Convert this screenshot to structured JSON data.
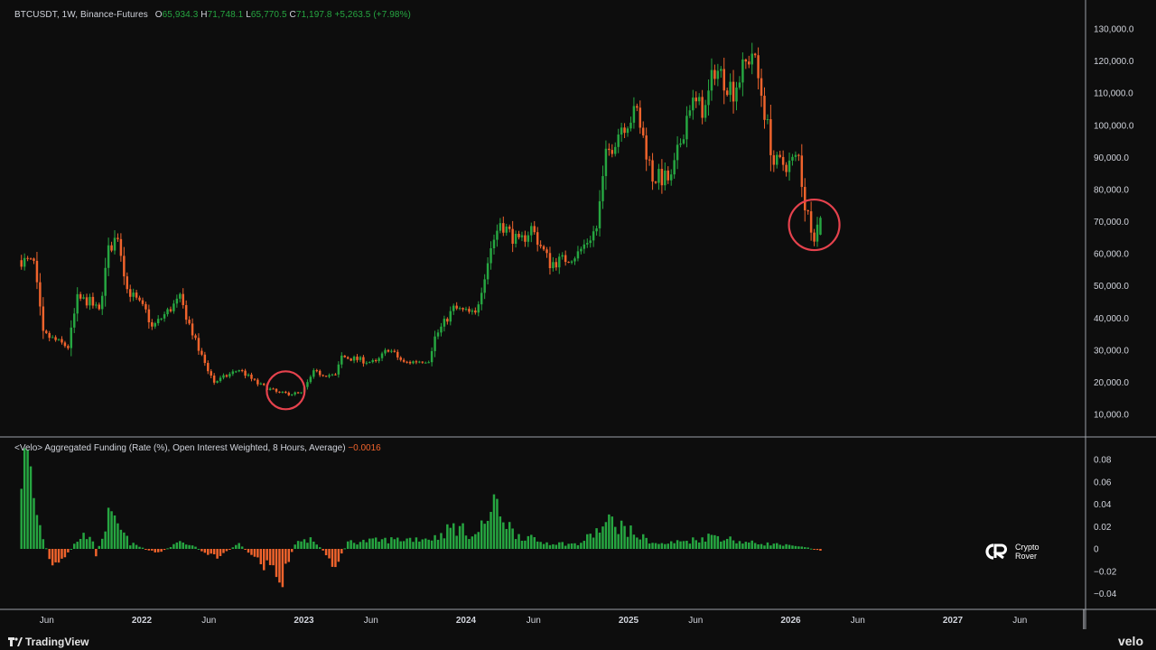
{
  "header": {
    "symbol": "BTCUSDT, 1W, Binance-Futures",
    "o_label": "O",
    "o_value": "65,934.3",
    "h_label": "H",
    "h_value": "71,748.1",
    "l_label": "L",
    "l_value": "65,770.5",
    "c_label": "C",
    "c_value": "71,197.8",
    "change": "+5,263.5 (+7.98%)"
  },
  "indicator": {
    "title": "<Velo> Aggregated Funding (Rate (%), Open Interest Weighted, 8 Hours, Average)",
    "value": "−0.0016"
  },
  "brand": {
    "left": "TradingView",
    "right": "velo",
    "watermark_line1": "Crypto",
    "watermark_line2": "Rover"
  },
  "colors": {
    "up": "#26a641",
    "down": "#f0632c",
    "circle": "#e5424d",
    "background": "#0d0d0d"
  },
  "chart_data": [
    {
      "type": "candlestick",
      "title": "BTCUSDT, 1W, Binance-Futures",
      "ylim": [
        0,
        135000
      ],
      "y_ticks": [
        "130,000.0",
        "120,000.0",
        "110,000.0",
        "100,000.0",
        "90,000.0",
        "80,000.0",
        "70,000.0",
        "60,000.0",
        "50,000.0",
        "40,000.0",
        "30,000.0",
        "20,000.0",
        "10,000.0"
      ],
      "x_ticks": [
        "Jun",
        "2022",
        "Jun",
        "2023",
        "Jun",
        "2024",
        "Jun",
        "2025",
        "Jun",
        "2026",
        "Jun",
        "2027",
        "Jun"
      ],
      "x_tick_dates": [
        "2021-06-01",
        "2022-01-01",
        "2022-06-01",
        "2023-01-01",
        "2023-06-01",
        "2024-01-01",
        "2024-06-01",
        "2025-01-01",
        "2025-06-01",
        "2026-01-01",
        "2026-06-01",
        "2027-01-01",
        "2027-06-01"
      ],
      "x_range": [
        "2021-04-05",
        "2027-10-01"
      ],
      "anchors": [
        {
          "date": "2021-04-05",
          "close": 58000
        },
        {
          "date": "2021-05-03",
          "close": 57000
        },
        {
          "date": "2021-05-24",
          "close": 35000
        },
        {
          "date": "2021-06-21",
          "close": 33000
        },
        {
          "date": "2021-07-19",
          "close": 31000
        },
        {
          "date": "2021-08-09",
          "close": 46000
        },
        {
          "date": "2021-09-06",
          "close": 45000
        },
        {
          "date": "2021-09-27",
          "close": 42000
        },
        {
          "date": "2021-10-18",
          "close": 61000
        },
        {
          "date": "2021-11-08",
          "close": 66000
        },
        {
          "date": "2021-11-29",
          "close": 49000
        },
        {
          "date": "2022-01-10",
          "close": 42000
        },
        {
          "date": "2022-01-24",
          "close": 37000
        },
        {
          "date": "2022-03-28",
          "close": 46000
        },
        {
          "date": "2022-05-09",
          "close": 30000
        },
        {
          "date": "2022-06-13",
          "close": 20000
        },
        {
          "date": "2022-08-08",
          "close": 24000
        },
        {
          "date": "2022-09-19",
          "close": 19500
        },
        {
          "date": "2022-11-07",
          "close": 16500
        },
        {
          "date": "2022-12-26",
          "close": 16500
        },
        {
          "date": "2023-01-23",
          "close": 23000
        },
        {
          "date": "2023-03-13",
          "close": 22000
        },
        {
          "date": "2023-03-27",
          "close": 28000
        },
        {
          "date": "2023-06-12",
          "close": 26000
        },
        {
          "date": "2023-07-10",
          "close": 30500
        },
        {
          "date": "2023-08-14",
          "close": 26000
        },
        {
          "date": "2023-10-09",
          "close": 27000
        },
        {
          "date": "2023-10-23",
          "close": 34000
        },
        {
          "date": "2023-12-04",
          "close": 43000
        },
        {
          "date": "2024-01-22",
          "close": 41000
        },
        {
          "date": "2024-02-26",
          "close": 62000
        },
        {
          "date": "2024-03-18",
          "close": 70000
        },
        {
          "date": "2024-04-29",
          "close": 63000
        },
        {
          "date": "2024-05-27",
          "close": 68000
        },
        {
          "date": "2024-07-08",
          "close": 57000
        },
        {
          "date": "2024-08-05",
          "close": 58000
        },
        {
          "date": "2024-09-09",
          "close": 60000
        },
        {
          "date": "2024-10-21",
          "close": 68000
        },
        {
          "date": "2024-11-11",
          "close": 90000
        },
        {
          "date": "2024-12-16",
          "close": 100000
        },
        {
          "date": "2025-01-20",
          "close": 104000
        },
        {
          "date": "2025-02-24",
          "close": 84000
        },
        {
          "date": "2025-04-07",
          "close": 83000
        },
        {
          "date": "2025-05-19",
          "close": 107000
        },
        {
          "date": "2025-06-23",
          "close": 105000
        },
        {
          "date": "2025-07-14",
          "close": 118000
        },
        {
          "date": "2025-08-25",
          "close": 111000
        },
        {
          "date": "2025-10-06",
          "close": 123000
        },
        {
          "date": "2025-10-27",
          "close": 110000
        },
        {
          "date": "2025-11-24",
          "close": 88000
        },
        {
          "date": "2025-12-29",
          "close": 88000
        },
        {
          "date": "2026-01-19",
          "close": 90000
        },
        {
          "date": "2026-02-02",
          "close": 75000
        },
        {
          "date": "2026-02-23",
          "close": 66000
        },
        {
          "date": "2026-03-09",
          "close": 71197.8
        }
      ],
      "last_candle": {
        "open": 65934.3,
        "high": 71748.1,
        "low": 65770.5,
        "close": 71197.8
      },
      "highlights": [
        {
          "date": "2022-11-21",
          "price": 17500
        },
        {
          "date": "2026-02-23",
          "price": 69000
        }
      ]
    },
    {
      "type": "bar",
      "title": "<Velo> Aggregated Funding (Rate (%), Open Interest Weighted, 8 Hours, Average)",
      "ylim": [
        -0.05,
        0.1
      ],
      "y_ticks": [
        "0.08",
        "0.06",
        "0.04",
        "0.02",
        "0",
        "−0.02",
        "−0.04"
      ],
      "anchors": [
        {
          "date": "2021-04-05",
          "value": 0.07
        },
        {
          "date": "2021-04-19",
          "value": 0.08
        },
        {
          "date": "2021-05-10",
          "value": 0.03
        },
        {
          "date": "2021-05-24",
          "value": 0.01
        },
        {
          "date": "2021-06-14",
          "value": -0.018
        },
        {
          "date": "2021-07-05",
          "value": -0.012
        },
        {
          "date": "2021-08-09",
          "value": 0.008
        },
        {
          "date": "2021-09-06",
          "value": 0.015
        },
        {
          "date": "2021-09-20",
          "value": -0.005
        },
        {
          "date": "2021-10-18",
          "value": 0.028
        },
        {
          "date": "2021-11-08",
          "value": 0.02
        },
        {
          "date": "2021-12-06",
          "value": 0.005
        },
        {
          "date": "2022-02-07",
          "value": -0.004
        },
        {
          "date": "2022-04-04",
          "value": 0.008
        },
        {
          "date": "2022-06-13",
          "value": -0.008
        },
        {
          "date": "2022-08-08",
          "value": 0.004
        },
        {
          "date": "2022-11-14",
          "value": -0.028
        },
        {
          "date": "2022-12-12",
          "value": 0.006
        },
        {
          "date": "2023-01-23",
          "value": 0.008
        },
        {
          "date": "2023-03-13",
          "value": -0.015
        },
        {
          "date": "2023-04-10",
          "value": 0.006
        },
        {
          "date": "2023-07-10",
          "value": 0.008
        },
        {
          "date": "2023-10-23",
          "value": 0.01
        },
        {
          "date": "2023-12-04",
          "value": 0.02
        },
        {
          "date": "2024-01-22",
          "value": 0.012
        },
        {
          "date": "2024-03-11",
          "value": 0.04
        },
        {
          "date": "2024-04-15",
          "value": 0.015
        },
        {
          "date": "2024-06-17",
          "value": 0.006
        },
        {
          "date": "2024-09-09",
          "value": 0.004
        },
        {
          "date": "2024-11-25",
          "value": 0.025
        },
        {
          "date": "2025-01-20",
          "value": 0.012
        },
        {
          "date": "2025-03-10",
          "value": 0.004
        },
        {
          "date": "2025-05-26",
          "value": 0.008
        },
        {
          "date": "2025-07-14",
          "value": 0.012
        },
        {
          "date": "2025-09-15",
          "value": 0.006
        },
        {
          "date": "2025-12-01",
          "value": 0.004
        },
        {
          "date": "2026-02-09",
          "value": 0.001
        },
        {
          "date": "2026-03-09",
          "value": -0.0016
        }
      ]
    }
  ]
}
